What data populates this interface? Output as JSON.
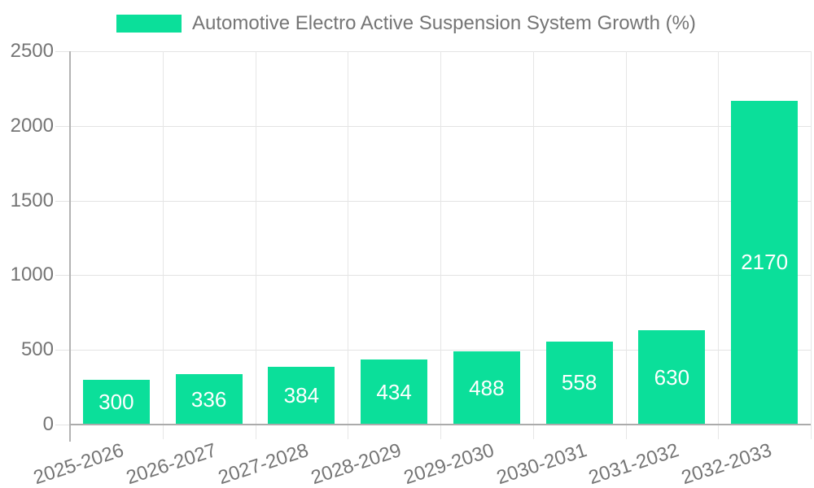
{
  "legend": {
    "label": "Automotive Electro Active Suspension System Growth (%)"
  },
  "colors": {
    "bar": "#0bdf9a",
    "axis_text": "#757575",
    "value_label": "#ffffff",
    "gridline": "#e3e3e3",
    "axis_line": "#b0b0b0",
    "background": "#ffffff"
  },
  "chart_data": {
    "type": "bar",
    "title": "Automotive Electro Active Suspension System Growth (%)",
    "categories": [
      "2025-2026",
      "2026-2027",
      "2027-2028",
      "2028-2029",
      "2029-2030",
      "2030-2031",
      "2031-2032",
      "2032-2033"
    ],
    "values": [
      300,
      336,
      384,
      434,
      488,
      558,
      630,
      2170
    ],
    "xlabel": "",
    "ylabel": "",
    "ylim": [
      0,
      2500
    ],
    "yticks": [
      0,
      500,
      1000,
      1500,
      2000,
      2500
    ],
    "grid": "on",
    "legend_position": "top-center",
    "value_labels": "inside-center",
    "x_label_rotation_deg": -18
  }
}
